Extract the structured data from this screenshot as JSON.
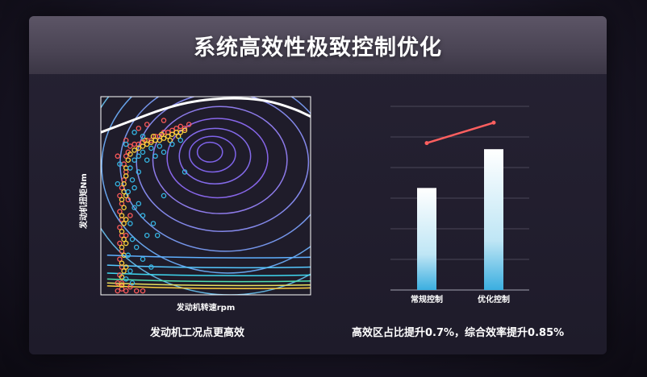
{
  "title": "系统高效性极致控制优化",
  "chart_data": [
    {
      "type": "scatter",
      "xlabel": "发动机转速rpm",
      "ylabel": "发动机扭矩Nm",
      "caption": "发动机工况点更高效",
      "grid": false,
      "xlim": [
        0,
        1
      ],
      "ylim": [
        0,
        1
      ],
      "series": [
        {
          "color": "#ff5a5a",
          "points": [
            [
              0.08,
              0.02
            ],
            [
              0.1,
              0.03
            ],
            [
              0.12,
              0.02
            ],
            [
              0.1,
              0.06
            ],
            [
              0.09,
              0.1
            ],
            [
              0.1,
              0.14
            ],
            [
              0.09,
              0.18
            ],
            [
              0.1,
              0.22
            ],
            [
              0.09,
              0.26
            ],
            [
              0.1,
              0.3
            ],
            [
              0.09,
              0.34
            ],
            [
              0.1,
              0.38
            ],
            [
              0.09,
              0.42
            ],
            [
              0.1,
              0.46
            ],
            [
              0.09,
              0.5
            ],
            [
              0.1,
              0.54
            ],
            [
              0.11,
              0.58
            ],
            [
              0.12,
              0.62
            ],
            [
              0.11,
              0.66
            ],
            [
              0.12,
              0.7
            ],
            [
              0.13,
              0.72
            ],
            [
              0.14,
              0.75
            ],
            [
              0.16,
              0.76
            ],
            [
              0.18,
              0.76
            ],
            [
              0.2,
              0.77
            ],
            [
              0.22,
              0.78
            ],
            [
              0.24,
              0.78
            ],
            [
              0.26,
              0.8
            ],
            [
              0.28,
              0.8
            ],
            [
              0.3,
              0.82
            ],
            [
              0.32,
              0.82
            ],
            [
              0.34,
              0.83
            ],
            [
              0.36,
              0.84
            ],
            [
              0.38,
              0.85
            ],
            [
              0.4,
              0.84
            ],
            [
              0.42,
              0.86
            ],
            [
              0.3,
              0.88
            ],
            [
              0.22,
              0.86
            ],
            [
              0.18,
              0.84
            ],
            [
              0.12,
              0.78
            ],
            [
              0.08,
              0.7
            ],
            [
              0.13,
              0.48
            ],
            [
              0.14,
              0.4
            ],
            [
              0.12,
              0.3
            ],
            [
              0.08,
              0.06
            ],
            [
              0.14,
              0.04
            ],
            [
              0.17,
              0.02
            ],
            [
              0.2,
              0.02
            ]
          ]
        },
        {
          "color": "#ffd23c",
          "points": [
            [
              0.1,
              0.05
            ],
            [
              0.1,
              0.09
            ],
            [
              0.11,
              0.12
            ],
            [
              0.1,
              0.16
            ],
            [
              0.11,
              0.2
            ],
            [
              0.1,
              0.24
            ],
            [
              0.11,
              0.28
            ],
            [
              0.1,
              0.32
            ],
            [
              0.11,
              0.36
            ],
            [
              0.1,
              0.4
            ],
            [
              0.11,
              0.44
            ],
            [
              0.1,
              0.48
            ],
            [
              0.11,
              0.52
            ],
            [
              0.11,
              0.56
            ],
            [
              0.12,
              0.6
            ],
            [
              0.12,
              0.64
            ],
            [
              0.13,
              0.68
            ],
            [
              0.14,
              0.71
            ],
            [
              0.16,
              0.73
            ],
            [
              0.18,
              0.74
            ],
            [
              0.2,
              0.75
            ],
            [
              0.22,
              0.76
            ],
            [
              0.24,
              0.77
            ],
            [
              0.26,
              0.78
            ],
            [
              0.28,
              0.78
            ],
            [
              0.3,
              0.79
            ],
            [
              0.32,
              0.8
            ],
            [
              0.34,
              0.81
            ],
            [
              0.36,
              0.82
            ],
            [
              0.38,
              0.82
            ],
            [
              0.4,
              0.83
            ],
            [
              0.25,
              0.8
            ],
            [
              0.29,
              0.81
            ],
            [
              0.33,
              0.78
            ],
            [
              0.37,
              0.8
            ],
            [
              0.21,
              0.78
            ],
            [
              0.12,
              0.14
            ],
            [
              0.12,
              0.26
            ],
            [
              0.12,
              0.38
            ],
            [
              0.12,
              0.5
            ]
          ]
        },
        {
          "color": "#36b8e6",
          "points": [
            [
              0.12,
              0.08
            ],
            [
              0.14,
              0.12
            ],
            [
              0.13,
              0.2
            ],
            [
              0.15,
              0.28
            ],
            [
              0.14,
              0.36
            ],
            [
              0.16,
              0.44
            ],
            [
              0.13,
              0.52
            ],
            [
              0.15,
              0.58
            ],
            [
              0.14,
              0.64
            ],
            [
              0.16,
              0.68
            ],
            [
              0.18,
              0.7
            ],
            [
              0.2,
              0.72
            ],
            [
              0.24,
              0.74
            ],
            [
              0.28,
              0.75
            ],
            [
              0.3,
              0.72
            ],
            [
              0.26,
              0.7
            ],
            [
              0.22,
              0.68
            ],
            [
              0.18,
              0.62
            ],
            [
              0.16,
              0.54
            ],
            [
              0.18,
              0.46
            ],
            [
              0.2,
              0.4
            ],
            [
              0.25,
              0.36
            ],
            [
              0.27,
              0.3
            ],
            [
              0.22,
              0.3
            ],
            [
              0.34,
              0.76
            ],
            [
              0.38,
              0.78
            ],
            [
              0.2,
              0.8
            ],
            [
              0.16,
              0.82
            ],
            [
              0.12,
              0.76
            ],
            [
              0.09,
              0.66
            ],
            [
              0.08,
              0.56
            ],
            [
              0.17,
              0.24
            ],
            [
              0.2,
              0.18
            ],
            [
              0.24,
              0.14
            ],
            [
              0.15,
              0.06
            ],
            [
              0.3,
              0.5
            ],
            [
              0.4,
              0.62
            ]
          ]
        }
      ]
    },
    {
      "type": "bar",
      "caption": "高效区占比提升0.7%，综合效率提升0.85%",
      "categories": [
        "常规控制",
        "优化控制"
      ],
      "values": [
        50,
        69
      ],
      "line_values": [
        72,
        82
      ],
      "ylim": [
        0,
        90
      ],
      "grid": true,
      "bar_color_top": "#ffffff",
      "bar_color_bottom": "#3aaee0",
      "line_color": "#ff5f5f"
    }
  ]
}
